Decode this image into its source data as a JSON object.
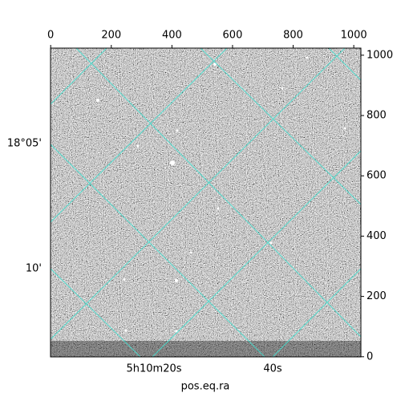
{
  "chart_data": {
    "type": "image",
    "xlabel": "pos.eq.ra",
    "xlim": [
      -0.5,
      1023.5
    ],
    "ylim": [
      -0.5,
      1023.5
    ],
    "xticks": [
      0,
      200,
      400,
      600,
      800,
      1000
    ],
    "yticks": [
      0,
      200,
      400,
      600,
      800,
      1000
    ],
    "ra_tick_labels": [
      "5h10m20s",
      "40s"
    ],
    "dec_tick_labels": [
      "18°05'",
      "10'"
    ],
    "grid_color": "#40e0d0"
  }
}
